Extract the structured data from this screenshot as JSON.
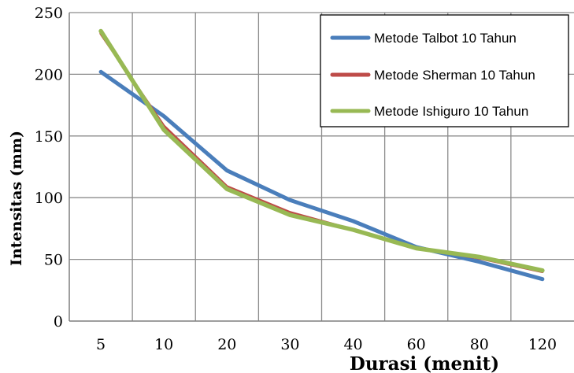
{
  "chart_data": {
    "type": "line",
    "categories": [
      "5",
      "10",
      "20",
      "30",
      "40",
      "60",
      "80",
      "120"
    ],
    "series": [
      {
        "name": "Metode Talbot 10 Tahun",
        "color": "#4a7ebb",
        "values": [
          202,
          166,
          122,
          98,
          81,
          60,
          48,
          34
        ]
      },
      {
        "name": "Metode Sherman 10 Tahun",
        "color": "#be4b48",
        "values": [
          233,
          158,
          109,
          88,
          74,
          59,
          51,
          40
        ]
      },
      {
        "name": "Metode Ishiguro 10 Tahun",
        "color": "#98b954",
        "values": [
          235,
          155,
          107,
          86,
          74,
          59,
          52,
          41
        ]
      }
    ],
    "xlabel": "Durasi  (menit)",
    "ylabel": "Intensitas (mm)",
    "ylim": [
      0,
      250
    ],
    "yticks": [
      0,
      50,
      100,
      150,
      200,
      250
    ],
    "grid": true,
    "legend": "top-right"
  }
}
